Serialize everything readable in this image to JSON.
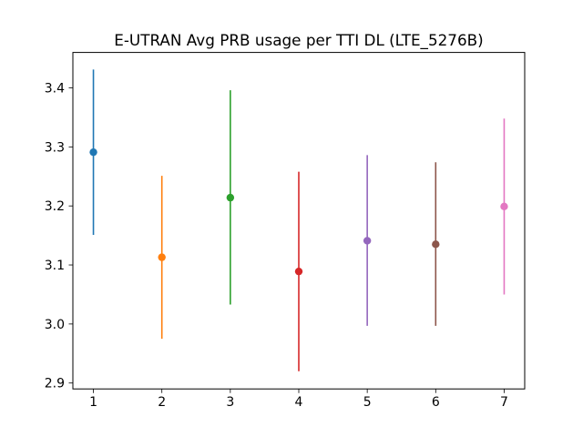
{
  "chart_data": {
    "type": "scatter",
    "title": "E-UTRAN Avg PRB usage per TTI DL (LTE_5276B)",
    "xlabel": "",
    "ylabel": "",
    "x_ticks": [
      "1",
      "2",
      "3",
      "4",
      "5",
      "6",
      "7"
    ],
    "y_ticks": [
      "2.9",
      "3.0",
      "3.1",
      "3.2",
      "3.3",
      "3.4"
    ],
    "xlim": [
      0.7,
      7.3
    ],
    "ylim": [
      2.89,
      3.46
    ],
    "grid": false,
    "points": [
      {
        "x": 1,
        "y": 3.291,
        "low": 3.151,
        "high": 3.431,
        "color": "#1f77b4"
      },
      {
        "x": 2,
        "y": 3.113,
        "low": 2.975,
        "high": 3.251,
        "color": "#ff7f0e"
      },
      {
        "x": 3,
        "y": 3.214,
        "low": 3.033,
        "high": 3.396,
        "color": "#2ca02c"
      },
      {
        "x": 4,
        "y": 3.089,
        "low": 2.92,
        "high": 3.258,
        "color": "#d62728"
      },
      {
        "x": 5,
        "y": 3.141,
        "low": 2.997,
        "high": 3.286,
        "color": "#9467bd"
      },
      {
        "x": 6,
        "y": 3.135,
        "low": 2.997,
        "high": 3.274,
        "color": "#8c564b"
      },
      {
        "x": 7,
        "y": 3.199,
        "low": 3.05,
        "high": 3.348,
        "color": "#e377c2"
      }
    ]
  }
}
